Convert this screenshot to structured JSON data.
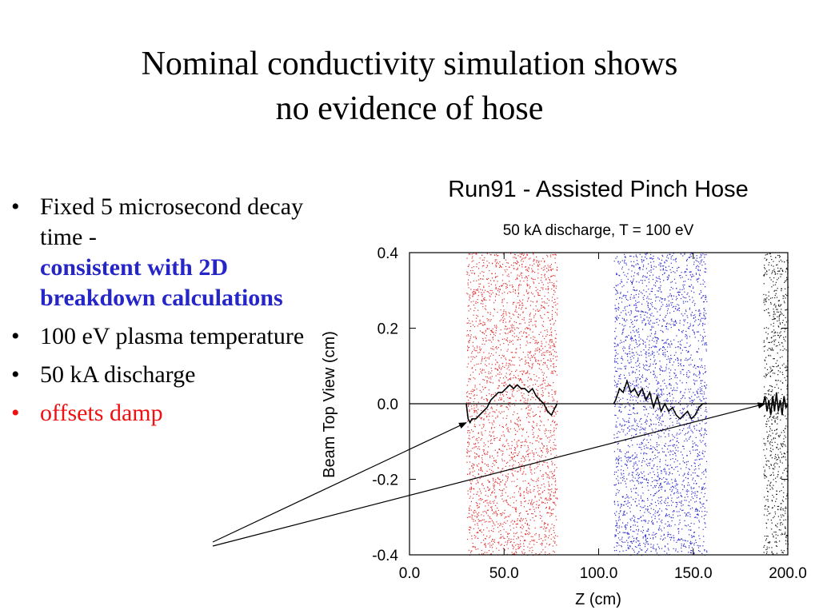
{
  "slide": {
    "title_lines": [
      "Nominal conductivity simulation shows",
      "no evidence of hose"
    ]
  },
  "bullets": [
    {
      "text": "Fixed 5  microsecond decay time -",
      "emphasis": "consistent with 2D breakdown calculations",
      "emphasis_color": "#2626c8"
    },
    {
      "text": "100 eV plasma temperature"
    },
    {
      "text": "50 kA discharge"
    },
    {
      "text": "offsets damp",
      "color": "#ee1111"
    }
  ],
  "chart_data": {
    "type": "scatter",
    "title": "Run91 - Assisted Pinch Hose",
    "subtitle": "50 kA discharge, T = 100 eV",
    "xlabel": "Z (cm)",
    "ylabel": "Beam Top View (cm)",
    "xlim": [
      0,
      200
    ],
    "ylim": [
      -0.4,
      0.4
    ],
    "x_ticks": [
      0,
      50,
      100,
      150,
      200
    ],
    "x_tick_labels": [
      "0.0",
      "50.0",
      "100.0",
      "150.0",
      "200.0"
    ],
    "y_ticks": [
      0.4,
      0.2,
      0.0,
      -0.2,
      -0.4
    ],
    "y_tick_labels": [
      "0.4",
      "0.2",
      "0.0",
      "-0.2",
      "-0.4"
    ],
    "series": [
      {
        "color": "#e03030",
        "particle_band": {
          "x": [
            30,
            78
          ],
          "y": [
            -0.4,
            0.4
          ]
        },
        "centroid": {
          "x": [
            30,
            31,
            32,
            33,
            35,
            37,
            39,
            41,
            43,
            45,
            47,
            49,
            51,
            53,
            55,
            57,
            59,
            61,
            63,
            65,
            67,
            69,
            71,
            73,
            75,
            77,
            78
          ],
          "y": [
            0.0,
            -0.04,
            -0.05,
            -0.04,
            -0.04,
            -0.03,
            -0.02,
            -0.01,
            0.01,
            0.02,
            0.03,
            0.03,
            0.04,
            0.05,
            0.04,
            0.05,
            0.04,
            0.04,
            0.03,
            0.04,
            0.02,
            0.01,
            0.0,
            -0.02,
            -0.03,
            -0.01,
            0.0
          ]
        }
      },
      {
        "color": "#2a2ad0",
        "particle_band": {
          "x": [
            108,
            157
          ],
          "y": [
            -0.4,
            0.4
          ]
        },
        "centroid": {
          "x": [
            108,
            109,
            111,
            113,
            115,
            117,
            119,
            121,
            123,
            125,
            127,
            129,
            131,
            133,
            135,
            137,
            139,
            141,
            143,
            145,
            147,
            149,
            151,
            153,
            155,
            157
          ],
          "y": [
            0.0,
            0.01,
            0.04,
            0.03,
            0.06,
            0.03,
            0.04,
            0.02,
            0.04,
            0.01,
            0.03,
            -0.01,
            0.02,
            -0.02,
            0.0,
            -0.02,
            -0.01,
            -0.03,
            -0.04,
            -0.03,
            -0.02,
            -0.04,
            -0.03,
            -0.01,
            0.0,
            0.0
          ]
        }
      },
      {
        "color": "#111111",
        "particle_band": {
          "x": [
            187,
            200
          ],
          "y": [
            -0.4,
            0.4
          ]
        },
        "centroid": {
          "x": [
            187,
            188,
            189,
            190,
            191,
            192,
            193,
            194,
            195,
            196,
            197,
            198,
            199,
            200
          ],
          "y": [
            0.0,
            0.02,
            -0.02,
            0.01,
            -0.03,
            0.02,
            -0.02,
            0.03,
            -0.02,
            0.01,
            -0.03,
            0.02,
            -0.01,
            0.0
          ]
        }
      }
    ],
    "reference_line_y": 0.0,
    "annotation_arrows": [
      {
        "from_label": "offsets damp",
        "to": {
          "x": 30,
          "y": -0.05
        }
      },
      {
        "from_label": "offsets damp",
        "to": {
          "x": 188,
          "y": 0.0
        }
      }
    ]
  }
}
